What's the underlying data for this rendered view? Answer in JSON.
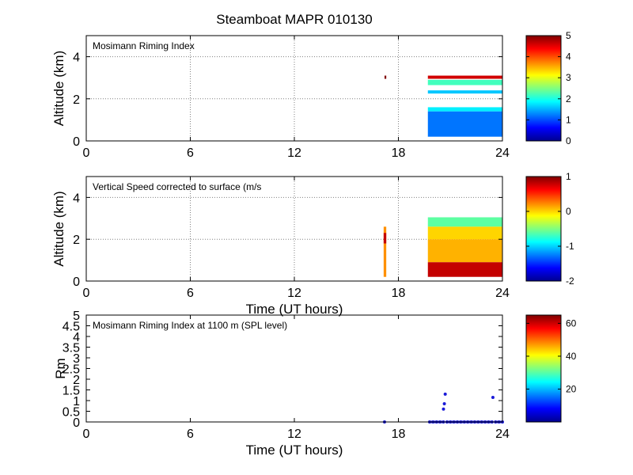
{
  "chart_data": [
    {
      "type": "heatmap",
      "title": "Steamboat MAPR 010130",
      "annotation": "Mosimann Riming Index",
      "xlabel": "",
      "ylabel": "Altitude (km)",
      "xlim": [
        0,
        24
      ],
      "ylim": [
        0,
        5
      ],
      "x_ticks": [
        0,
        6,
        12,
        18,
        24
      ],
      "y_ticks": [
        0,
        2,
        4
      ],
      "grid": true,
      "colorbar": {
        "min": 0,
        "max": 5,
        "ticks": [
          0,
          1,
          2,
          3,
          4,
          5
        ]
      },
      "data_regions": [
        {
          "x_start": 17.2,
          "x_end": 17.3,
          "alt_bottom": 2.95,
          "alt_top": 3.1,
          "value": 5.0
        },
        {
          "x_start": 19.7,
          "x_end": 24.0,
          "alt_bottom": 2.95,
          "alt_top": 3.1,
          "value": 4.6
        },
        {
          "x_start": 19.7,
          "x_end": 24.0,
          "alt_bottom": 2.65,
          "alt_top": 2.9,
          "value": 2.2
        },
        {
          "x_start": 19.7,
          "x_end": 24.0,
          "alt_bottom": 2.25,
          "alt_top": 2.4,
          "value": 1.6
        },
        {
          "x_start": 19.7,
          "x_end": 24.0,
          "alt_bottom": 1.4,
          "alt_top": 1.6,
          "value": 1.8
        },
        {
          "x_start": 19.7,
          "x_end": 24.0,
          "alt_bottom": 0.2,
          "alt_top": 1.4,
          "value": 1.2
        }
      ]
    },
    {
      "type": "heatmap",
      "title": "",
      "annotation": "Vertical Speed corrected to surface (m/s",
      "xlabel": "Time (UT hours)",
      "ylabel": "Altitude (km)",
      "xlim": [
        0,
        24
      ],
      "ylim": [
        0,
        5
      ],
      "x_ticks": [
        0,
        6,
        12,
        18,
        24
      ],
      "y_ticks": [
        0,
        2,
        4
      ],
      "grid": true,
      "colorbar": {
        "min": -2,
        "max": 1,
        "ticks": [
          -2,
          -1,
          0,
          1
        ]
      },
      "data_regions": [
        {
          "x_start": 17.15,
          "x_end": 17.3,
          "alt_bottom": 0.2,
          "alt_top": 2.6,
          "value": 0.2
        },
        {
          "x_start": 17.15,
          "x_end": 17.3,
          "alt_bottom": 1.8,
          "alt_top": 2.3,
          "value": 0.8
        },
        {
          "x_start": 19.7,
          "x_end": 24.0,
          "alt_bottom": 2.6,
          "alt_top": 3.05,
          "value": -0.6
        },
        {
          "x_start": 19.7,
          "x_end": 24.0,
          "alt_bottom": 2.0,
          "alt_top": 2.6,
          "value": 0.0
        },
        {
          "x_start": 19.7,
          "x_end": 24.0,
          "alt_bottom": 0.9,
          "alt_top": 2.0,
          "value": 0.1
        },
        {
          "x_start": 19.7,
          "x_end": 24.0,
          "alt_bottom": 0.2,
          "alt_top": 0.9,
          "value": 0.8
        }
      ]
    },
    {
      "type": "scatter",
      "title": "",
      "annotation": "Mosimann Riming Index at 1100 m (SPL level)",
      "xlabel": "Time (UT hours)",
      "ylabel": "Rm",
      "xlim": [
        0,
        24
      ],
      "ylim": [
        0,
        5
      ],
      "x_ticks": [
        0,
        6,
        12,
        18,
        24
      ],
      "y_ticks": [
        0,
        0.5,
        1,
        1.5,
        2,
        2.5,
        3,
        3.5,
        4,
        4.5,
        5
      ],
      "y_tick_labels": [
        "0",
        "0.5",
        "1",
        "1.5",
        "2",
        "2.5",
        "3",
        "3.5",
        "4",
        "4.5",
        "5"
      ],
      "grid": false,
      "colorbar": {
        "min": 0,
        "max": 65,
        "ticks": [
          20,
          40,
          60
        ]
      },
      "points": {
        "x": [
          17.2,
          19.8,
          20.0,
          20.2,
          20.4,
          20.6,
          20.6,
          20.65,
          20.7,
          20.8,
          21.0,
          21.2,
          21.4,
          21.6,
          21.8,
          22.0,
          22.2,
          22.4,
          22.6,
          22.8,
          23.0,
          23.2,
          23.4,
          23.45,
          23.6,
          23.8,
          24.0
        ],
        "y": [
          0,
          0,
          0,
          0,
          0,
          0,
          0.6,
          0.85,
          1.3,
          0,
          0,
          0,
          0,
          0,
          0,
          0,
          0,
          0,
          0,
          0,
          0,
          0,
          0,
          1.15,
          0,
          0,
          0
        ]
      }
    }
  ]
}
